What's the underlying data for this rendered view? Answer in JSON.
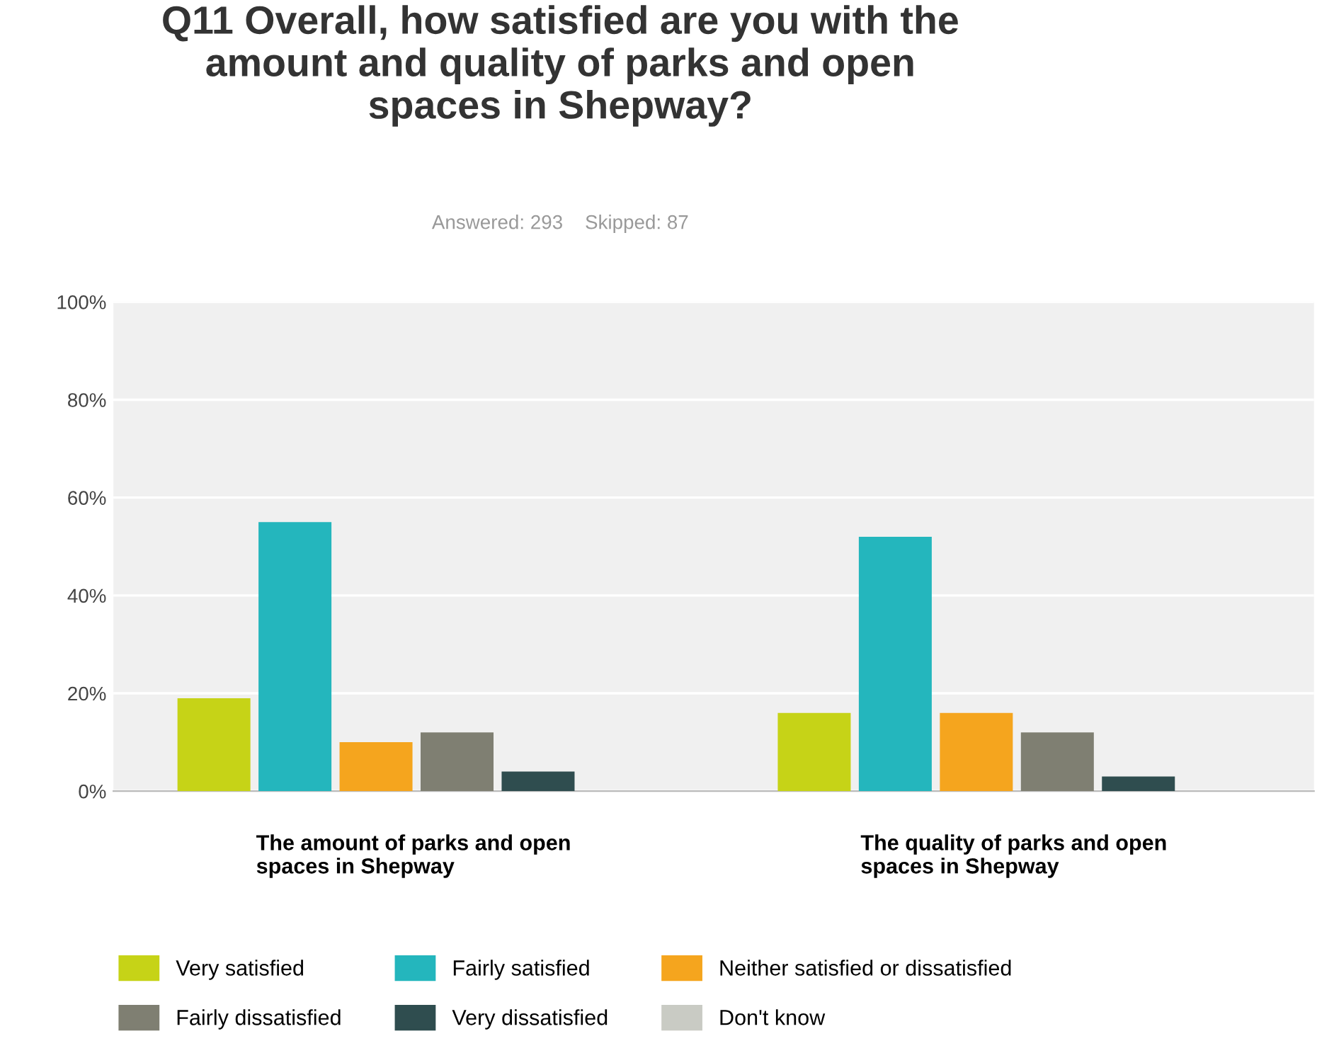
{
  "chart_data": {
    "type": "bar",
    "title": "Q11 Overall, how satisfied are you with the\namount and quality of parks and open\nspaces in Shepway?",
    "subtitle": "Answered: 293    Skipped: 87",
    "categories": [
      "The amount of parks and open\nspaces in Shepway",
      "The quality of parks and open\nspaces in Shepway"
    ],
    "series": [
      {
        "name": "Very satisfied",
        "color": "#c6d317",
        "values": [
          19,
          16
        ]
      },
      {
        "name": "Fairly satisfied",
        "color": "#24b6bd",
        "values": [
          55,
          52
        ]
      },
      {
        "name": "Neither satisfied or dissatisfied",
        "color": "#f5a51e",
        "values": [
          10,
          16
        ]
      },
      {
        "name": "Fairly dissatisfied",
        "color": "#7f7f72",
        "values": [
          12,
          12
        ]
      },
      {
        "name": "Very dissatisfied",
        "color": "#2f4d4f",
        "values": [
          4,
          3
        ]
      },
      {
        "name": "Don't know",
        "color": "#c9cbc4",
        "values": [
          0,
          0
        ]
      }
    ],
    "ylim": [
      0,
      100
    ],
    "yticks": [
      {
        "value": 0,
        "label": "0%"
      },
      {
        "value": 20,
        "label": "20%"
      },
      {
        "value": 40,
        "label": "40%"
      },
      {
        "value": 60,
        "label": "60%"
      },
      {
        "value": 80,
        "label": "80%"
      },
      {
        "value": 100,
        "label": "100%"
      }
    ],
    "grid": "y",
    "legend": "bottom"
  }
}
